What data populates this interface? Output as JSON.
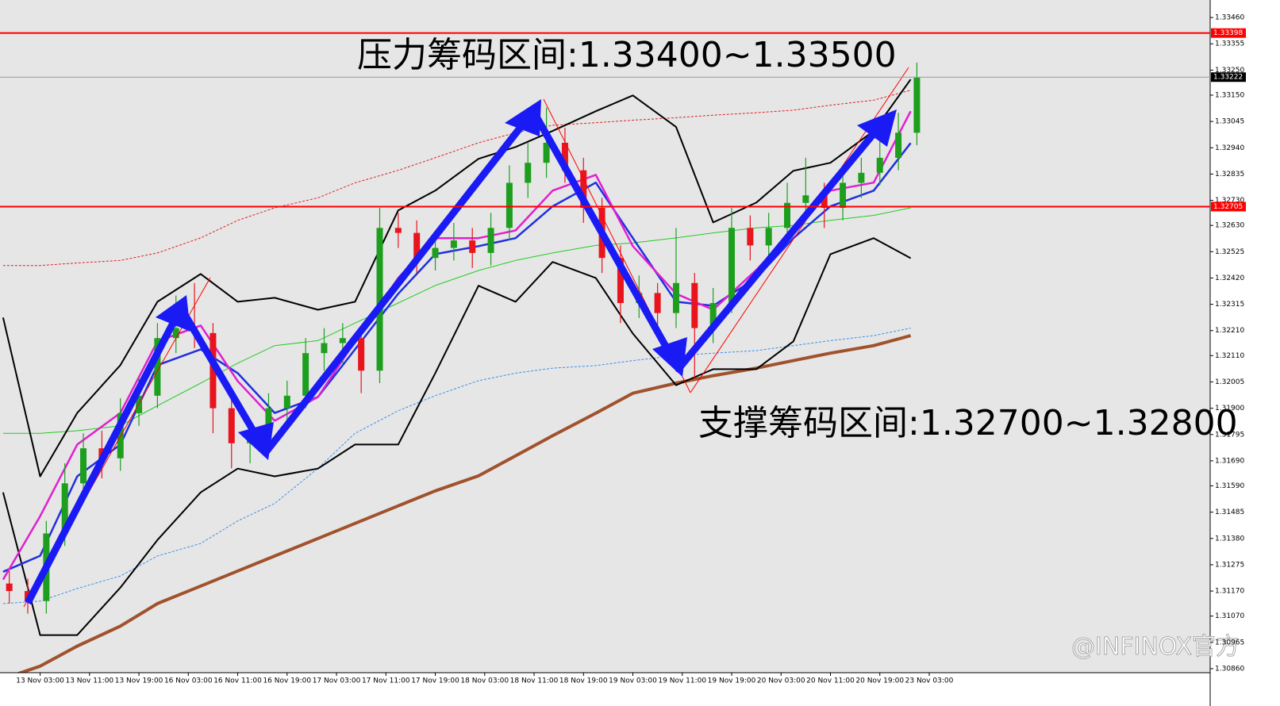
{
  "chart_data": {
    "type": "candlestick",
    "x": [
      -5,
      -2,
      1,
      4,
      7,
      10,
      13,
      16,
      19,
      22,
      25,
      28,
      31,
      34,
      37,
      40,
      43,
      46,
      49,
      52,
      55,
      58,
      61,
      64,
      67,
      70,
      73,
      76,
      79,
      82,
      85,
      88,
      91,
      94,
      97,
      100,
      103,
      106,
      109,
      112,
      115,
      118,
      121,
      124,
      127,
      130,
      133,
      136,
      139,
      142
    ],
    "open": [
      1.312,
      1.3117,
      1.3113,
      1.314,
      1.316,
      1.3174,
      1.317,
      1.3188,
      1.3195,
      1.3218,
      1.3222,
      1.322,
      1.319,
      1.3176,
      1.3178,
      1.319,
      1.3195,
      1.3212,
      1.3216,
      1.3218,
      1.3205,
      1.3262,
      1.326,
      1.325,
      1.3254,
      1.3257,
      1.3252,
      1.3262,
      1.328,
      1.3288,
      1.3296,
      1.3285,
      1.327,
      1.325,
      1.3232,
      1.3236,
      1.3228,
      1.324,
      1.3222,
      1.3232,
      1.3262,
      1.3255,
      1.3262,
      1.3272,
      1.3275,
      1.327,
      1.328,
      1.3284,
      1.329,
      1.33
    ],
    "high": [
      1.3125,
      1.3122,
      1.3145,
      1.3168,
      1.318,
      1.3181,
      1.3194,
      1.3202,
      1.3224,
      1.3235,
      1.324,
      1.3224,
      1.3196,
      1.3185,
      1.3196,
      1.3201,
      1.3218,
      1.3222,
      1.3224,
      1.3222,
      1.327,
      1.3268,
      1.3265,
      1.326,
      1.3264,
      1.3262,
      1.3268,
      1.3287,
      1.3296,
      1.331,
      1.3302,
      1.329,
      1.3274,
      1.3255,
      1.3243,
      1.324,
      1.3262,
      1.3244,
      1.3238,
      1.327,
      1.3267,
      1.3268,
      1.328,
      1.329,
      1.328,
      1.3287,
      1.329,
      1.3297,
      1.3308,
      1.3328
    ],
    "low": [
      1.3112,
      1.3108,
      1.3108,
      1.3135,
      1.3155,
      1.3162,
      1.3165,
      1.3183,
      1.319,
      1.3212,
      1.3214,
      1.318,
      1.3166,
      1.3168,
      1.3172,
      1.3184,
      1.319,
      1.3205,
      1.3208,
      1.3196,
      1.32,
      1.3254,
      1.3244,
      1.3245,
      1.3249,
      1.3246,
      1.3247,
      1.3257,
      1.3274,
      1.3282,
      1.328,
      1.3264,
      1.3244,
      1.3224,
      1.3226,
      1.322,
      1.3222,
      1.3202,
      1.3216,
      1.3228,
      1.3249,
      1.325,
      1.3257,
      1.3266,
      1.3262,
      1.3265,
      1.3274,
      1.3279,
      1.3285,
      1.3295
    ],
    "close": [
      1.3117,
      1.3113,
      1.314,
      1.316,
      1.3174,
      1.317,
      1.3188,
      1.3195,
      1.3218,
      1.3222,
      1.322,
      1.319,
      1.3176,
      1.3178,
      1.319,
      1.3195,
      1.3212,
      1.3216,
      1.3218,
      1.3205,
      1.3262,
      1.326,
      1.325,
      1.3254,
      1.3257,
      1.3252,
      1.3262,
      1.328,
      1.3288,
      1.3296,
      1.3285,
      1.327,
      1.325,
      1.3232,
      1.3236,
      1.3228,
      1.324,
      1.3222,
      1.3232,
      1.3262,
      1.3255,
      1.3262,
      1.3272,
      1.3275,
      1.327,
      1.328,
      1.3284,
      1.329,
      1.33,
      1.3322
    ],
    "up_color": "#1e9e1e",
    "down_color": "#e8141e",
    "xlim": [
      -6.5,
      189.5
    ],
    "xticks": [
      {
        "value": 0,
        "label": "13 Nov 03:00"
      },
      {
        "value": 8,
        "label": "13 Nov 11:00"
      },
      {
        "value": 16,
        "label": "13 Nov 19:00"
      },
      {
        "value": 24,
        "label": "16 Nov 03:00"
      },
      {
        "value": 32,
        "label": "16 Nov 11:00"
      },
      {
        "value": 40,
        "label": "16 Nov 19:00"
      },
      {
        "value": 48,
        "label": "17 Nov 03:00"
      },
      {
        "value": 56,
        "label": "17 Nov 11:00"
      },
      {
        "value": 64,
        "label": "17 Nov 19:00"
      },
      {
        "value": 72,
        "label": "18 Nov 03:00"
      },
      {
        "value": 80,
        "label": "18 Nov 11:00"
      },
      {
        "value": 88,
        "label": "18 Nov 19:00"
      },
      {
        "value": 96,
        "label": "19 Nov 03:00"
      },
      {
        "value": 104,
        "label": "19 Nov 11:00"
      },
      {
        "value": 112,
        "label": "19 Nov 19:00"
      },
      {
        "value": 120,
        "label": "20 Nov 03:00"
      },
      {
        "value": 128,
        "label": "20 Nov 11:00"
      },
      {
        "value": 136,
        "label": "20 Nov 19:00"
      },
      {
        "value": 144,
        "label": "23 Nov 03:00"
      }
    ],
    "ylim": [
      1.30844,
      1.3353
    ],
    "yticks": [
      {
        "value": 1.3346,
        "label": "1.33460"
      },
      1.33355,
      {
        "value": 1.3325,
        "label": "1.33250"
      },
      {
        "value": 1.3315,
        "label": "1.33150"
      },
      1.33045,
      {
        "value": 1.3294,
        "label": "1.32940"
      },
      1.32835,
      {
        "value": 1.3273,
        "label": "1.32730"
      },
      {
        "value": 1.3263,
        "label": "1.32630"
      },
      1.32525,
      {
        "value": 1.3242,
        "label": "1.32420"
      },
      1.32315,
      {
        "value": 1.3221,
        "label": "1.32210"
      },
      {
        "value": 1.3211,
        "label": "1.32110"
      },
      1.32005,
      {
        "value": 1.319,
        "label": "1.31900"
      },
      1.31795,
      {
        "value": 1.3169,
        "label": "1.31690"
      },
      {
        "value": 1.3159,
        "label": "1.31590"
      },
      1.31485,
      {
        "value": 1.3138,
        "label": "1.31380"
      },
      1.31275,
      {
        "value": 1.3117,
        "label": "1.31170"
      },
      {
        "value": 1.3107,
        "label": "1.31070"
      },
      1.30965,
      {
        "value": 1.3086,
        "label": "1.30860"
      }
    ],
    "lines": {
      "x": [
        -6,
        0,
        6,
        13,
        19,
        26,
        32,
        38,
        45,
        51,
        58,
        64,
        71,
        77,
        83,
        90,
        96,
        103,
        109,
        116,
        122,
        128,
        135,
        141
      ],
      "series": [
        {
          "color": "#a0522d",
          "width": 4,
          "dash": "none",
          "values": [
            1.3082,
            1.3087,
            1.3095,
            1.3103,
            1.3112,
            1.3119,
            1.3125,
            1.3131,
            1.3138,
            1.3144,
            1.3151,
            1.3157,
            1.3163,
            1.3171,
            1.3179,
            1.3188,
            1.3196,
            1.32,
            1.3203,
            1.3206,
            1.3209,
            1.3212,
            1.3215,
            1.3219
          ]
        },
        {
          "color": "#22cc22",
          "width": 1,
          "dash": "none",
          "values": [
            1.318,
            1.318,
            1.3181,
            1.3183,
            1.3191,
            1.32,
            1.3208,
            1.3215,
            1.3217,
            1.3224,
            1.3232,
            1.3239,
            1.3245,
            1.3249,
            1.3252,
            1.3255,
            1.3256,
            1.3258,
            1.326,
            1.3262,
            1.3263,
            1.3265,
            1.3267,
            1.327
          ]
        },
        {
          "color": "#e02020",
          "width": 1,
          "dash": "3 2",
          "values": [
            1.3247,
            1.3247,
            1.3248,
            1.3249,
            1.3252,
            1.3258,
            1.3265,
            1.327,
            1.3274,
            1.328,
            1.3285,
            1.329,
            1.3296,
            1.33,
            1.3303,
            1.3304,
            1.3305,
            1.3306,
            1.3307,
            1.3308,
            1.3309,
            1.3311,
            1.3313,
            1.3317
          ]
        },
        {
          "color": "#3d8ee8",
          "width": 1,
          "dash": "3 2",
          "values": [
            1.3112,
            1.3113,
            1.3118,
            1.3123,
            1.3131,
            1.3136,
            1.3145,
            1.3152,
            1.3166,
            1.318,
            1.3189,
            1.3195,
            1.3201,
            1.3204,
            1.3206,
            1.3207,
            1.3209,
            1.3211,
            1.3212,
            1.3213,
            1.3215,
            1.3217,
            1.3219,
            1.3222
          ]
        },
        {
          "color": "#000000",
          "width": 2,
          "dash": "none",
          "values": [
            1.32262,
            1.31628,
            1.31881,
            1.32072,
            1.32325,
            1.32436,
            1.32325,
            1.32341,
            1.32293,
            1.32325,
            1.3269,
            1.32769,
            1.32896,
            1.32943,
            1.33007,
            1.33086,
            1.33149,
            1.33023,
            1.32642,
            1.32721,
            1.32848,
            1.3288,
            1.33007,
            1.33213
          ]
        },
        {
          "color": "#000000",
          "width": 2,
          "dash": "none",
          "values": [
            1.31564,
            1.30994,
            1.30994,
            1.31184,
            1.31374,
            1.31564,
            1.31659,
            1.31628,
            1.31659,
            1.31755,
            1.31755,
            1.3204,
            1.32389,
            1.32325,
            1.32484,
            1.3242,
            1.32198,
            1.31992,
            1.32056,
            1.32056,
            1.32167,
            1.32515,
            1.32579,
            1.32499
          ]
        },
        {
          "color": "#1f2fe0",
          "width": 2.5,
          "dash": "none",
          "values": [
            1.31247,
            1.31311,
            1.31628,
            1.31755,
            1.32072,
            1.32135,
            1.3204,
            1.31881,
            1.31945,
            1.32135,
            1.32357,
            1.32515,
            1.32547,
            1.32579,
            1.32706,
            1.32801,
            1.32579,
            1.32325,
            1.32309,
            1.3242,
            1.32579,
            1.32706,
            1.32769,
            1.32959
          ]
        },
        {
          "color": "#e020d0",
          "width": 2.5,
          "dash": "none",
          "values": [
            1.31216,
            1.31469,
            1.31755,
            1.31881,
            1.32167,
            1.3223,
            1.32008,
            1.3185,
            1.31945,
            1.32167,
            1.3242,
            1.32579,
            1.32579,
            1.3261,
            1.32769,
            1.32832,
            1.32547,
            1.32357,
            1.32293,
            1.32452,
            1.3261,
            1.32769,
            1.32801,
            1.33086
          ]
        }
      ]
    },
    "hlines": [
      {
        "value": 1.33398,
        "color": "#ff0000"
      },
      {
        "value": 1.33222,
        "color": "#000000"
      },
      {
        "value": 1.32705,
        "color": "#ff0000"
      }
    ],
    "annotations": [
      "压力筹码区间:1.33400~1.33500",
      "支撑筹码区间:1.32700~1.32800"
    ],
    "watermark": "@INFINOX官方"
  }
}
